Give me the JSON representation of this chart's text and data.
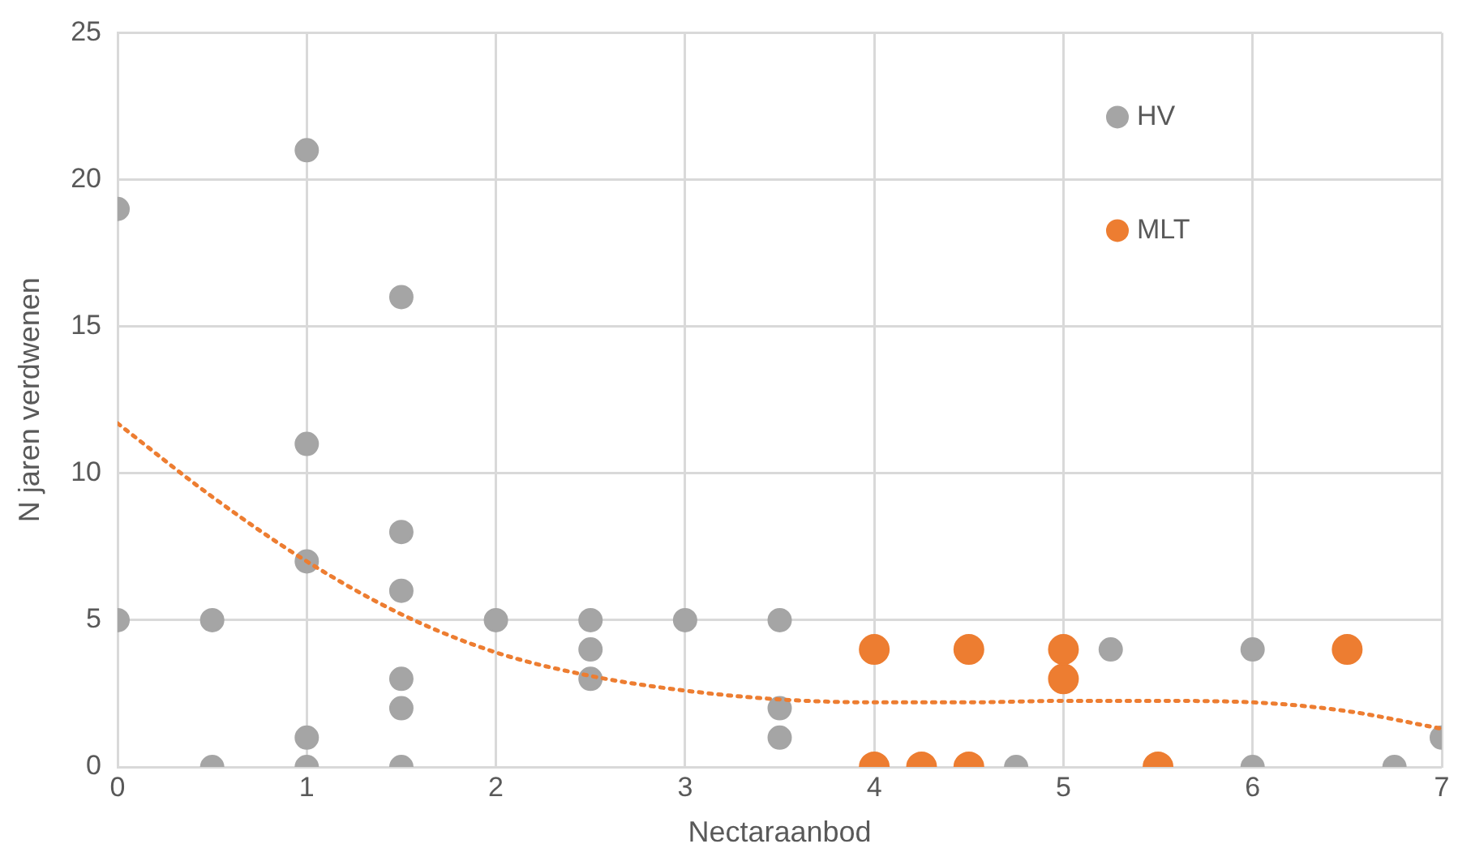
{
  "chart_data": {
    "type": "scatter",
    "xlabel": "Nectaraanbod",
    "ylabel": "N jaren verdwenen",
    "xlim": [
      0,
      7
    ],
    "xticks": [
      0,
      1,
      2,
      3,
      4,
      5,
      6,
      7
    ],
    "ylim": [
      0,
      25
    ],
    "yticks": [
      0,
      5,
      10,
      15,
      20,
      25
    ],
    "grid": true,
    "legend": "top right",
    "marker": "circle",
    "series": [
      {
        "name": "HV",
        "color": "#a5a5a5",
        "x": [
          0,
          0,
          0.5,
          0.5,
          1,
          1,
          1,
          1,
          1,
          1.5,
          1.5,
          1.5,
          1.5,
          1.5,
          1.5,
          2,
          2.5,
          2.5,
          2.5,
          3,
          3.5,
          3.5,
          3.5,
          4.75,
          5.25,
          6,
          6,
          6.75,
          7
        ],
        "values": [
          19,
          5,
          5,
          0,
          21,
          11,
          7,
          1,
          0,
          16,
          8,
          6,
          3,
          2,
          0,
          5,
          5,
          4,
          3,
          5,
          5,
          2,
          1,
          0,
          4,
          4,
          0,
          0,
          1
        ]
      },
      {
        "name": "MLT",
        "color": "#ed7d31",
        "x": [
          4,
          4,
          4.25,
          4.5,
          4.5,
          5,
          5,
          5.5,
          6.5
        ],
        "values": [
          4,
          0,
          0,
          4,
          0,
          4,
          3,
          0,
          4
        ]
      },
      {
        "type": "line",
        "color": "#ed7d31",
        "line_style": "dotted",
        "marker": "none",
        "x": [
          0,
          0.5,
          1,
          1.5,
          2,
          2.5,
          3,
          3.5,
          4,
          4.5,
          5,
          5.5,
          6,
          6.5,
          7
        ],
        "values": [
          11.7,
          9.2,
          7.0,
          5.2,
          3.9,
          3.1,
          2.6,
          2.3,
          2.2,
          2.2,
          2.25,
          2.25,
          2.2,
          1.9,
          1.3
        ]
      }
    ]
  }
}
